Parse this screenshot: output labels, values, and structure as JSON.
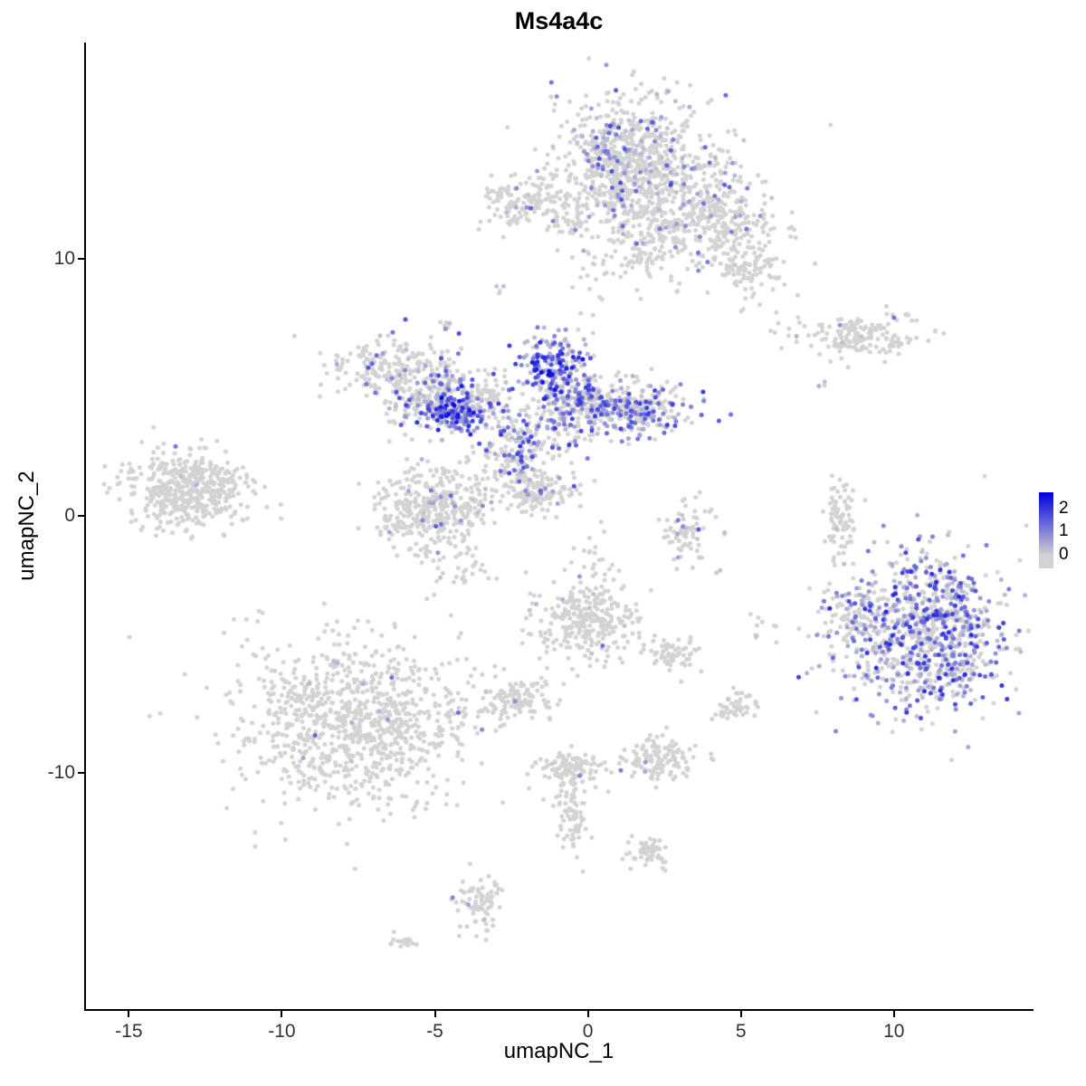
{
  "title": "Ms4a4c",
  "axes": {
    "x": {
      "label": "umapNC_1",
      "ticks": [
        {
          "value": -15,
          "label": "-15"
        },
        {
          "value": -10,
          "label": "-10"
        },
        {
          "value": -5,
          "label": "-5"
        },
        {
          "value": 0,
          "label": "0"
        },
        {
          "value": 5,
          "label": "5"
        },
        {
          "value": 10,
          "label": "10"
        }
      ]
    },
    "y": {
      "label": "umapNC_2",
      "ticks": [
        {
          "value": 10,
          "label": "10"
        },
        {
          "value": 0,
          "label": "0"
        },
        {
          "value": -10,
          "label": "-10"
        }
      ]
    }
  },
  "legend": {
    "ticks": [
      {
        "value": 2,
        "label": "2"
      },
      {
        "value": 1,
        "label": "1"
      },
      {
        "value": 0,
        "label": "0"
      }
    ]
  },
  "chart_data": {
    "type": "scatter",
    "title": "Ms4a4c",
    "xlabel": "umapNC_1",
    "ylabel": "umapNC_2",
    "xlim": [
      -16.4,
      14.5
    ],
    "ylim": [
      -19.2,
      18.4
    ],
    "grid": false,
    "legend_position": "right",
    "legend_ticks": [
      0,
      1,
      2
    ],
    "legend_range": [
      -0.6,
      2.7
    ],
    "point_radius": 2.5,
    "color_low": "#D3D3D3",
    "color_high": "#0000E0",
    "expr_scale_max": 2.7,
    "seed": 42,
    "clusters": [
      {
        "x": 1.5,
        "y": 13.6,
        "sx": 1.5,
        "sy": 1.5,
        "n": 650,
        "f": 0.1,
        "m": 1.6
      },
      {
        "x": 1.1,
        "y": 13.9,
        "sx": 0.8,
        "sy": 1.0,
        "n": 220,
        "f": 0.3,
        "m": 1.8
      },
      {
        "x": 3.9,
        "y": 11.6,
        "sx": 1.0,
        "sy": 0.9,
        "n": 260,
        "f": 0.06,
        "m": 1.4
      },
      {
        "x": 5.2,
        "y": 9.9,
        "sx": 0.8,
        "sy": 0.8,
        "n": 130,
        "f": 0.03,
        "m": 1.2
      },
      {
        "x": 2.1,
        "y": 10.9,
        "sx": 0.7,
        "sy": 1.0,
        "n": 150,
        "f": 0.05,
        "m": 1.4
      },
      {
        "x": -2.6,
        "y": 12.1,
        "sx": 0.5,
        "sy": 0.5,
        "n": 70,
        "f": 0.07,
        "m": 1.6
      },
      {
        "x": -1.6,
        "y": 12.3,
        "sx": 0.45,
        "sy": 0.55,
        "n": 55,
        "f": 0.05,
        "m": 1.4
      },
      {
        "x": -0.6,
        "y": 11.4,
        "sx": 0.3,
        "sy": 0.45,
        "n": 35,
        "f": 0.04,
        "m": 1.0
      },
      {
        "x": 0.1,
        "y": 8.9,
        "sx": 0.3,
        "sy": 0.9,
        "n": 22,
        "f": 0.1,
        "m": 1.2
      },
      {
        "x": -2.8,
        "y": 8.9,
        "sx": 0.12,
        "sy": 0.12,
        "n": 4,
        "f": 0.5,
        "m": 1.5
      },
      {
        "x": -4.6,
        "y": 7.6,
        "sx": 0.15,
        "sy": 0.2,
        "n": 6,
        "f": 0.4,
        "m": 1.5
      },
      {
        "x": -6.5,
        "y": 5.8,
        "sx": 0.95,
        "sy": 0.6,
        "n": 190,
        "f": 0.12,
        "m": 1.8
      },
      {
        "x": -5.3,
        "y": 4.5,
        "sx": 0.8,
        "sy": 0.5,
        "n": 150,
        "f": 0.22,
        "m": 2.0
      },
      {
        "x": -4.3,
        "y": 4.0,
        "sx": 0.55,
        "sy": 0.4,
        "n": 170,
        "f": 0.85,
        "m": 2.6
      },
      {
        "x": -4.7,
        "y": 5.2,
        "sx": 0.4,
        "sy": 0.45,
        "n": 45,
        "f": 0.3,
        "m": 1.8
      },
      {
        "x": -3.3,
        "y": 4.6,
        "sx": 0.5,
        "sy": 0.5,
        "n": 80,
        "f": 0.3,
        "m": 2.0
      },
      {
        "x": -1.1,
        "y": 5.8,
        "sx": 0.5,
        "sy": 0.75,
        "n": 190,
        "f": 0.8,
        "m": 2.6
      },
      {
        "x": -0.3,
        "y": 4.5,
        "sx": 0.7,
        "sy": 0.5,
        "n": 150,
        "f": 0.5,
        "m": 2.0
      },
      {
        "x": 1.5,
        "y": 4.2,
        "sx": 0.95,
        "sy": 0.55,
        "n": 290,
        "f": 0.45,
        "m": 2.0
      },
      {
        "x": -1.7,
        "y": 3.1,
        "sx": 0.8,
        "sy": 0.6,
        "n": 130,
        "f": 0.5,
        "m": 2.2
      },
      {
        "x": -2.4,
        "y": 2.0,
        "sx": 0.7,
        "sy": 0.6,
        "n": 110,
        "f": 0.2,
        "m": 2.0
      },
      {
        "x": -1.6,
        "y": 0.9,
        "sx": 0.55,
        "sy": 0.4,
        "n": 130,
        "f": 0.05,
        "m": 1.5
      },
      {
        "x": -13.1,
        "y": 1.0,
        "sx": 1.05,
        "sy": 0.75,
        "n": 470,
        "f": 0.01,
        "m": 1.6
      },
      {
        "x": -5.0,
        "y": 0.3,
        "sx": 1.0,
        "sy": 0.8,
        "n": 390,
        "f": 0.06,
        "m": 1.8
      },
      {
        "x": 8.8,
        "y": 7.0,
        "sx": 1.15,
        "sy": 0.42,
        "n": 160,
        "f": 0.02,
        "m": 1.5
      },
      {
        "x": 7.6,
        "y": 5.3,
        "sx": 0.12,
        "sy": 0.12,
        "n": 3,
        "f": 0.3,
        "m": 1.0
      },
      {
        "x": 8.2,
        "y": 0.0,
        "sx": 0.28,
        "sy": 0.85,
        "n": 75,
        "f": 0.01,
        "m": 1.0
      },
      {
        "x": 11.0,
        "y": -4.6,
        "sx": 1.35,
        "sy": 1.55,
        "n": 900,
        "f": 0.55,
        "m": 2.2
      },
      {
        "x": 8.6,
        "y": -4.2,
        "sx": 0.55,
        "sy": 0.9,
        "n": 90,
        "f": 0.2,
        "m": 1.8
      },
      {
        "x": 0.0,
        "y": -4.1,
        "sx": 0.9,
        "sy": 0.85,
        "n": 290,
        "f": 0.03,
        "m": 1.6
      },
      {
        "x": 2.8,
        "y": -5.3,
        "sx": 0.4,
        "sy": 0.35,
        "n": 60,
        "f": 0.0,
        "m": 1.0
      },
      {
        "x": 5.6,
        "y": -4.5,
        "sx": 0.3,
        "sy": 0.3,
        "n": 10,
        "f": 0.1,
        "m": 1.0
      },
      {
        "x": 3.2,
        "y": -0.6,
        "sx": 0.5,
        "sy": 0.6,
        "n": 75,
        "f": 0.08,
        "m": 1.6
      },
      {
        "x": 4.2,
        "y": -2.1,
        "sx": 0.1,
        "sy": 0.1,
        "n": 2,
        "f": 0.6,
        "m": 1.0
      },
      {
        "x": 0.2,
        "y": -1.3,
        "sx": 0.3,
        "sy": 0.8,
        "n": 18,
        "f": 0.05,
        "m": 1.0
      },
      {
        "x": -4.0,
        "y": -2.2,
        "sx": 0.45,
        "sy": 0.4,
        "n": 30,
        "f": 0.03,
        "m": 1.0
      },
      {
        "x": -7.7,
        "y": -8.0,
        "sx": 1.9,
        "sy": 1.55,
        "n": 980,
        "f": 0.015,
        "m": 1.6
      },
      {
        "x": -2.3,
        "y": -7.1,
        "sx": 0.55,
        "sy": 0.4,
        "n": 110,
        "f": 0.01,
        "m": 1.2
      },
      {
        "x": -0.6,
        "y": -9.9,
        "sx": 0.55,
        "sy": 0.4,
        "n": 115,
        "f": 0.01,
        "m": 1.2
      },
      {
        "x": 2.3,
        "y": -9.5,
        "sx": 0.6,
        "sy": 0.45,
        "n": 130,
        "f": 0.02,
        "m": 1.4
      },
      {
        "x": 4.8,
        "y": -7.4,
        "sx": 0.35,
        "sy": 0.3,
        "n": 45,
        "f": 0.02,
        "m": 1.2
      },
      {
        "x": -0.5,
        "y": -11.8,
        "sx": 0.25,
        "sy": 0.7,
        "n": 70,
        "f": 0.0,
        "m": 1.0
      },
      {
        "x": 1.9,
        "y": -13.1,
        "sx": 0.35,
        "sy": 0.3,
        "n": 55,
        "f": 0.0,
        "m": 1.0
      },
      {
        "x": -3.5,
        "y": -15.0,
        "sx": 0.3,
        "sy": 0.55,
        "n": 78,
        "f": 0.03,
        "m": 1.4
      },
      {
        "x": -6.1,
        "y": -16.6,
        "sx": 0.25,
        "sy": 0.15,
        "n": 18,
        "f": 0.0,
        "m": 1.0
      }
    ]
  }
}
